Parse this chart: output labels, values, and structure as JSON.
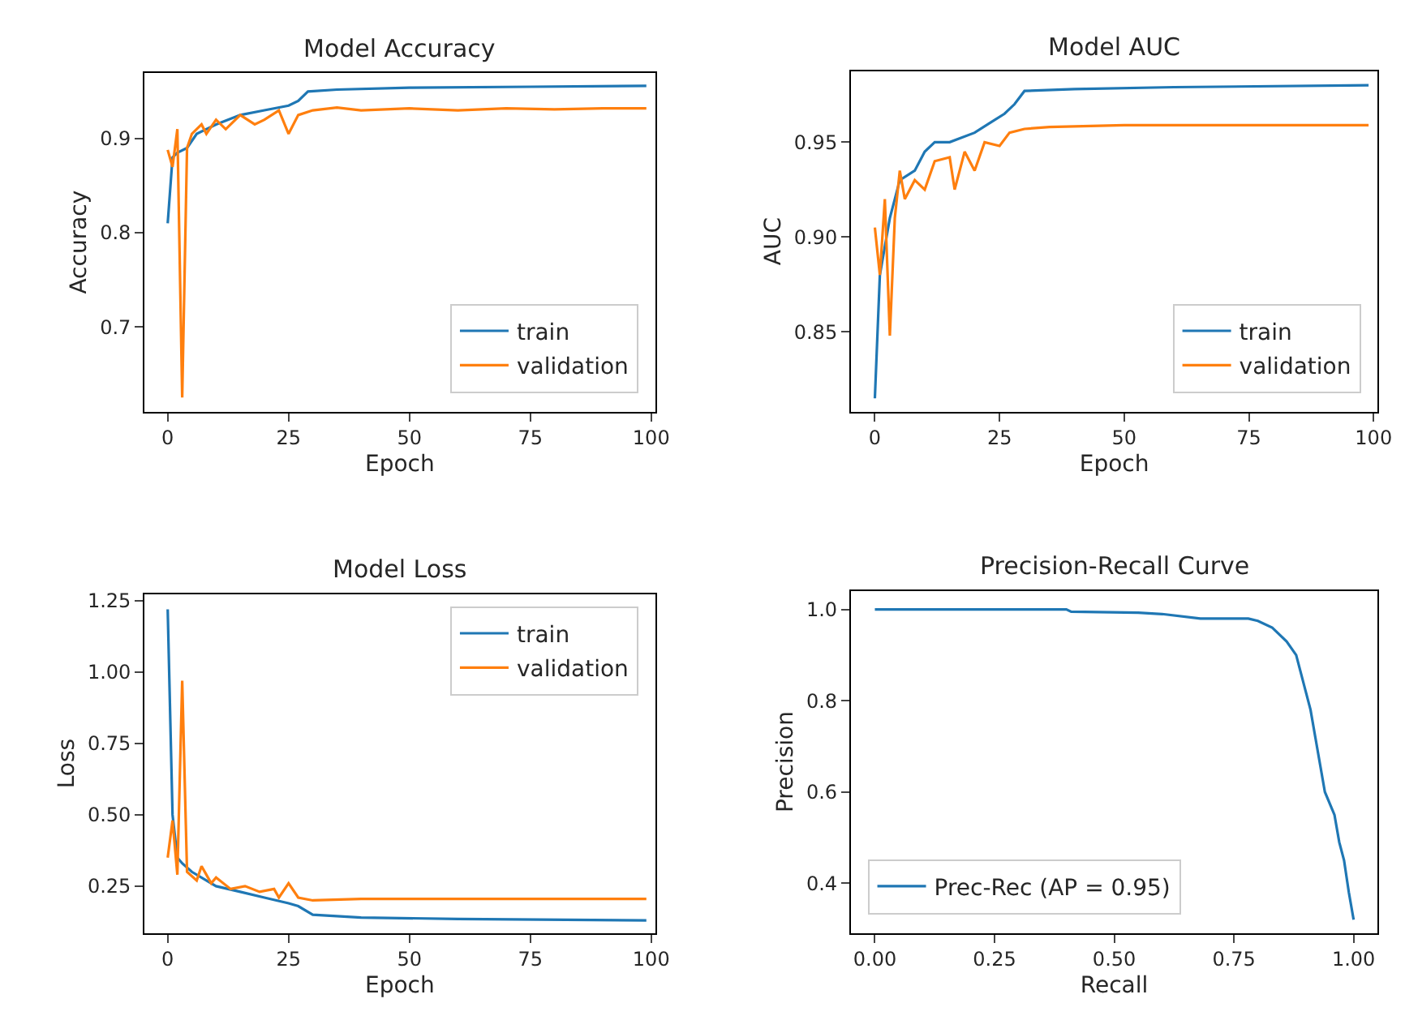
{
  "chart_data": [
    {
      "type": "line",
      "title": "Model Accuracy",
      "xlabel": "Epoch",
      "ylabel": "Accuracy",
      "xlim": [
        -4.8,
        100.8
      ],
      "xticks": [
        0,
        25,
        50,
        75,
        100
      ],
      "ylim": [
        0.61,
        0.97
      ],
      "yticks": [
        0.7,
        0.8,
        0.9
      ],
      "legend": "bottom right",
      "series": [
        {
          "name": "train",
          "color": "#1f77b4",
          "x": [
            0,
            1,
            2,
            4,
            6,
            10,
            15,
            20,
            25,
            27,
            29,
            35,
            50,
            75,
            99
          ],
          "values": [
            0.81,
            0.88,
            0.885,
            0.89,
            0.905,
            0.915,
            0.925,
            0.93,
            0.935,
            0.94,
            0.95,
            0.952,
            0.954,
            0.955,
            0.956
          ]
        },
        {
          "name": "validation",
          "color": "#ff7f0e",
          "x": [
            0,
            1,
            2,
            3,
            4,
            5,
            7,
            8,
            10,
            12,
            15,
            18,
            20,
            23,
            25,
            27,
            30,
            35,
            40,
            50,
            60,
            70,
            80,
            90,
            99
          ],
          "values": [
            0.888,
            0.87,
            0.91,
            0.625,
            0.89,
            0.905,
            0.915,
            0.905,
            0.92,
            0.91,
            0.925,
            0.915,
            0.92,
            0.93,
            0.905,
            0.925,
            0.93,
            0.933,
            0.93,
            0.932,
            0.93,
            0.932,
            0.931,
            0.932,
            0.932
          ]
        }
      ]
    },
    {
      "type": "line",
      "title": "Model AUC",
      "xlabel": "Epoch",
      "ylabel": "AUC",
      "xlim": [
        -4.8,
        100.8
      ],
      "xticks": [
        0,
        25,
        50,
        75,
        100
      ],
      "ylim": [
        0.808,
        0.9875
      ],
      "yticks": [
        {
          "value": 0.85,
          "label": "0.85"
        },
        {
          "value": 0.9,
          "label": "0.90"
        },
        {
          "value": 0.95,
          "label": "0.95"
        }
      ],
      "legend": "bottom right",
      "series": [
        {
          "name": "train",
          "color": "#1f77b4",
          "x": [
            0,
            1,
            3,
            5,
            8,
            10,
            12,
            15,
            20,
            23,
            26,
            28,
            30,
            40,
            60,
            99
          ],
          "values": [
            0.815,
            0.88,
            0.91,
            0.93,
            0.935,
            0.945,
            0.95,
            0.95,
            0.955,
            0.96,
            0.965,
            0.97,
            0.977,
            0.978,
            0.979,
            0.98
          ]
        },
        {
          "name": "validation",
          "color": "#ff7f0e",
          "x": [
            0,
            1,
            2,
            3,
            4,
            5,
            6,
            8,
            10,
            12,
            15,
            16,
            18,
            20,
            22,
            25,
            27,
            30,
            35,
            50,
            99
          ],
          "values": [
            0.905,
            0.88,
            0.92,
            0.848,
            0.91,
            0.935,
            0.92,
            0.93,
            0.925,
            0.94,
            0.942,
            0.925,
            0.945,
            0.935,
            0.95,
            0.948,
            0.955,
            0.957,
            0.958,
            0.959,
            0.959
          ]
        }
      ]
    },
    {
      "type": "line",
      "title": "Model Loss",
      "xlabel": "Epoch",
      "ylabel": "Loss",
      "xlim": [
        -4.8,
        100.8
      ],
      "xticks": [
        0,
        25,
        50,
        75,
        100
      ],
      "ylim": [
        0.086,
        1.274
      ],
      "yticks": [
        {
          "value": 0.25,
          "label": "0.25"
        },
        {
          "value": 0.5,
          "label": "0.50"
        },
        {
          "value": 0.75,
          "label": "0.75"
        },
        {
          "value": 1.0,
          "label": "1.00"
        },
        {
          "value": 1.25,
          "label": "1.25"
        }
      ],
      "legend": "top right",
      "series": [
        {
          "name": "train",
          "color": "#1f77b4",
          "x": [
            0,
            1,
            2,
            3,
            5,
            8,
            10,
            15,
            20,
            25,
            27,
            30,
            40,
            60,
            99
          ],
          "values": [
            1.22,
            0.5,
            0.35,
            0.33,
            0.3,
            0.27,
            0.25,
            0.23,
            0.21,
            0.19,
            0.18,
            0.15,
            0.14,
            0.135,
            0.13
          ]
        },
        {
          "name": "validation",
          "color": "#ff7f0e",
          "x": [
            0,
            1,
            2,
            3,
            4,
            6,
            7,
            9,
            10,
            13,
            16,
            19,
            22,
            23,
            25,
            27,
            30,
            40,
            99
          ],
          "values": [
            0.35,
            0.48,
            0.29,
            0.97,
            0.3,
            0.27,
            0.32,
            0.26,
            0.28,
            0.24,
            0.25,
            0.23,
            0.24,
            0.21,
            0.26,
            0.21,
            0.2,
            0.205,
            0.205
          ]
        }
      ]
    },
    {
      "type": "line",
      "title": "Precision-Recall Curve",
      "xlabel": "Recall",
      "ylabel": "Precision",
      "xlim": [
        -0.05,
        1.05
      ],
      "xticks": [
        {
          "value": 0,
          "label": "0.00"
        },
        {
          "value": 0.25,
          "label": "0.25"
        },
        {
          "value": 0.5,
          "label": "0.50"
        },
        {
          "value": 0.75,
          "label": "0.75"
        },
        {
          "value": 1,
          "label": "1.00"
        }
      ],
      "ylim": [
        0.291,
        1.041
      ],
      "yticks": [
        0.4,
        0.6,
        0.8,
        {
          "value": 1.0,
          "label": "1.0"
        }
      ],
      "legend": "bottom left",
      "series": [
        {
          "name": "Prec-Rec (AP = 0.95)",
          "color": "#1f77b4",
          "x": [
            0,
            0.4,
            0.41,
            0.55,
            0.6,
            0.68,
            0.78,
            0.8,
            0.83,
            0.86,
            0.88,
            0.89,
            0.9,
            0.91,
            0.92,
            0.93,
            0.94,
            0.96,
            0.97,
            0.98,
            0.99,
            1.0
          ],
          "values": [
            1.0,
            1.0,
            0.995,
            0.993,
            0.99,
            0.98,
            0.98,
            0.975,
            0.96,
            0.93,
            0.9,
            0.86,
            0.82,
            0.78,
            0.72,
            0.66,
            0.6,
            0.55,
            0.49,
            0.45,
            0.38,
            0.32
          ]
        }
      ]
    }
  ]
}
